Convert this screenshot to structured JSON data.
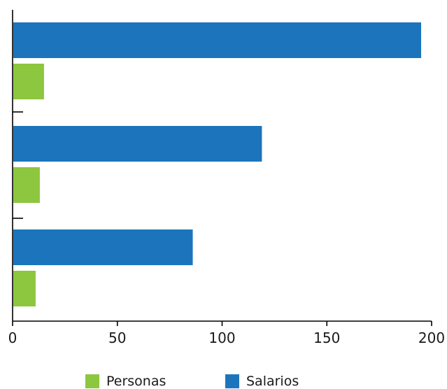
{
  "chart_data": {
    "type": "bar",
    "orientation": "horizontal",
    "categories": [
      "",
      "",
      ""
    ],
    "series": [
      {
        "name": "Salarios",
        "color": "#1c75bc",
        "values": [
          195,
          119,
          86
        ]
      },
      {
        "name": "Personas",
        "color": "#8dc63f",
        "values": [
          15,
          13,
          11
        ]
      }
    ],
    "xlim": [
      0,
      200
    ],
    "xticks": [
      "0",
      "50",
      "100",
      "150",
      "200"
    ],
    "xtick_values": [
      0,
      50,
      100,
      150,
      200
    ],
    "title": "",
    "xlabel": "",
    "ylabel": "",
    "grid": false,
    "legend_position": "bottom"
  },
  "legend": [
    {
      "label": "Personas",
      "color": "#8dc63f"
    },
    {
      "label": "Salarios",
      "color": "#1c75bc"
    }
  ]
}
